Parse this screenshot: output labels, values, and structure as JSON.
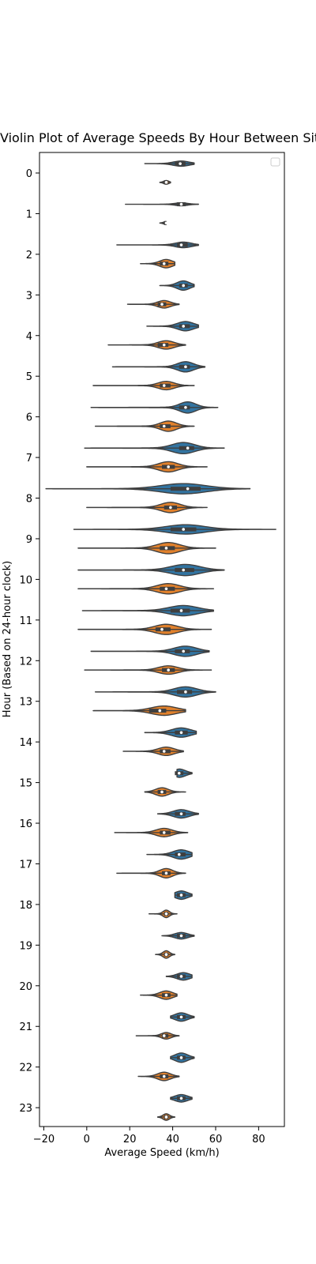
{
  "chart_data": {
    "type": "violin",
    "title": "Violin Plot of Average Speeds By Hour Between Sites Post-Installation",
    "xlabel": "Average Speed (km/h)",
    "ylabel": "Hour (Based on 24-hour clock)",
    "xlim": [
      -22,
      92
    ],
    "xticks": [
      -20,
      0,
      20,
      40,
      60,
      80
    ],
    "categories": [
      "0",
      "1",
      "2",
      "3",
      "4",
      "5",
      "6",
      "7",
      "8",
      "9",
      "10",
      "11",
      "12",
      "13",
      "14",
      "15",
      "16",
      "17",
      "18",
      "19",
      "20",
      "21",
      "22",
      "23"
    ],
    "legend": {
      "position": "top-right",
      "entries": []
    },
    "colors": {
      "series_a": "#3274a1",
      "series_b": "#e1812c",
      "outline": "#3f3f3f"
    },
    "series": [
      {
        "min": [
          27,
          18,
          14,
          34,
          28,
          12,
          2,
          -1,
          -19,
          -6,
          -4,
          -2,
          2,
          4,
          27,
          42,
          33,
          28,
          41,
          35,
          37,
          39,
          39,
          39
        ],
        "max": [
          50,
          52,
          52,
          50,
          52,
          55,
          61,
          64,
          76,
          88,
          64,
          59,
          57,
          60,
          51,
          49,
          52,
          49,
          49,
          50,
          49,
          50,
          50,
          49
        ],
        "median": [
          43.5,
          44,
          44,
          45,
          45,
          46,
          46,
          47,
          47,
          45,
          45,
          44,
          45,
          46,
          44,
          43,
          44,
          43,
          44,
          44,
          44,
          44,
          44,
          44
        ],
        "q1": [
          41,
          42,
          42,
          43,
          43,
          43,
          43,
          43,
          39,
          39,
          41,
          39,
          41,
          42,
          41,
          41,
          41,
          41,
          42,
          42,
          42,
          42,
          42,
          42
        ],
        "q3": [
          46,
          46,
          47,
          47,
          48,
          48,
          48,
          50,
          53,
          51,
          50,
          48,
          48,
          49,
          47,
          45,
          46,
          46,
          46,
          46,
          46,
          46,
          46,
          46
        ],
        "peak": [
          44,
          44,
          45,
          45,
          46,
          46,
          47,
          45,
          45,
          46,
          46,
          45,
          46,
          46,
          44,
          43,
          44,
          44,
          44,
          44,
          45,
          44,
          44,
          44
        ],
        "width": [
          0.28,
          0.16,
          0.3,
          0.5,
          0.5,
          0.55,
          0.6,
          0.6,
          0.55,
          0.5,
          0.6,
          0.55,
          0.55,
          0.55,
          0.5,
          0.45,
          0.45,
          0.5,
          0.45,
          0.35,
          0.4,
          0.45,
          0.5,
          0.4
        ]
      },
      {
        "min": [
          34,
          34,
          25,
          19,
          10,
          3,
          4,
          0,
          0,
          -4,
          -4,
          -4,
          -1,
          3,
          17,
          27,
          13,
          14,
          29,
          32,
          25,
          23,
          24,
          33
        ],
        "max": [
          39,
          37,
          41,
          43,
          46,
          50,
          50,
          56,
          56,
          60,
          59,
          58,
          58,
          46,
          45,
          46,
          47,
          46,
          42,
          41,
          42,
          43,
          43,
          41
        ],
        "median": [
          37,
          37,
          36,
          35,
          36,
          36,
          36,
          38,
          39,
          37,
          37,
          35,
          38,
          34,
          36,
          35,
          36,
          37,
          37,
          37,
          37,
          36,
          36,
          37
        ],
        "q1": [
          36,
          36,
          34,
          33,
          33,
          34,
          34,
          35,
          36,
          34,
          34,
          32,
          35,
          29,
          34,
          33,
          34,
          35,
          36,
          36,
          35,
          35,
          34,
          36
        ],
        "q3": [
          37,
          37,
          38,
          37,
          38,
          39,
          39,
          41,
          42,
          41,
          41,
          39,
          41,
          37,
          39,
          37,
          39,
          39,
          38,
          38,
          39,
          38,
          38,
          38
        ],
        "peak": [
          37,
          37,
          37,
          36,
          37,
          37,
          38,
          38,
          39,
          38,
          38,
          37,
          38,
          36,
          37,
          35,
          36,
          37,
          37,
          37,
          37,
          37,
          36,
          37
        ],
        "width": [
          0.2,
          0.16,
          0.45,
          0.4,
          0.45,
          0.45,
          0.55,
          0.55,
          0.55,
          0.6,
          0.55,
          0.55,
          0.45,
          0.5,
          0.45,
          0.45,
          0.45,
          0.5,
          0.4,
          0.4,
          0.45,
          0.35,
          0.45,
          0.35
        ]
      }
    ]
  }
}
